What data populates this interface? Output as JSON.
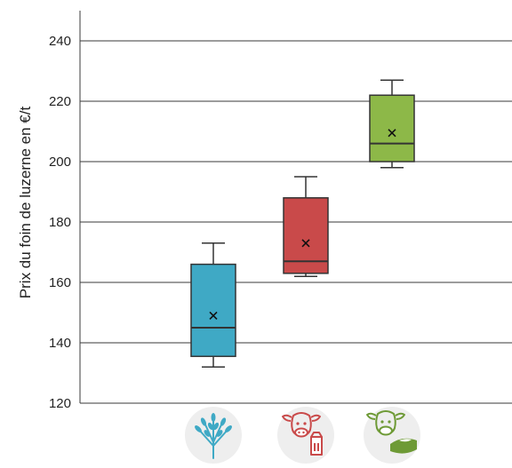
{
  "chart_data": {
    "type": "box",
    "title": "",
    "xlabel": "",
    "ylabel": "Prix du foin de luzerne en €/t",
    "ylim": [
      120,
      250
    ],
    "yticks": [
      120,
      140,
      160,
      180,
      200,
      220,
      240
    ],
    "grid": true,
    "legend": "none",
    "categories": [
      "wheat-icon",
      "dairy-cow-icon",
      "cheese-cow-icon"
    ],
    "boxes": [
      {
        "icon": "wheat-icon",
        "color": "#3FA9C5",
        "min": 132,
        "q1": 135.5,
        "median": 145,
        "q3": 166,
        "max": 173,
        "mean": 149
      },
      {
        "icon": "dairy-cow-icon",
        "color": "#C94A4A",
        "min": 162,
        "q1": 163,
        "median": 167,
        "q3": 188,
        "max": 195,
        "mean": 173
      },
      {
        "icon": "cheese-cow-icon",
        "color": "#8DB848",
        "min": 198,
        "q1": 200,
        "median": 206,
        "q3": 222,
        "max": 227,
        "mean": 209.5
      }
    ]
  }
}
